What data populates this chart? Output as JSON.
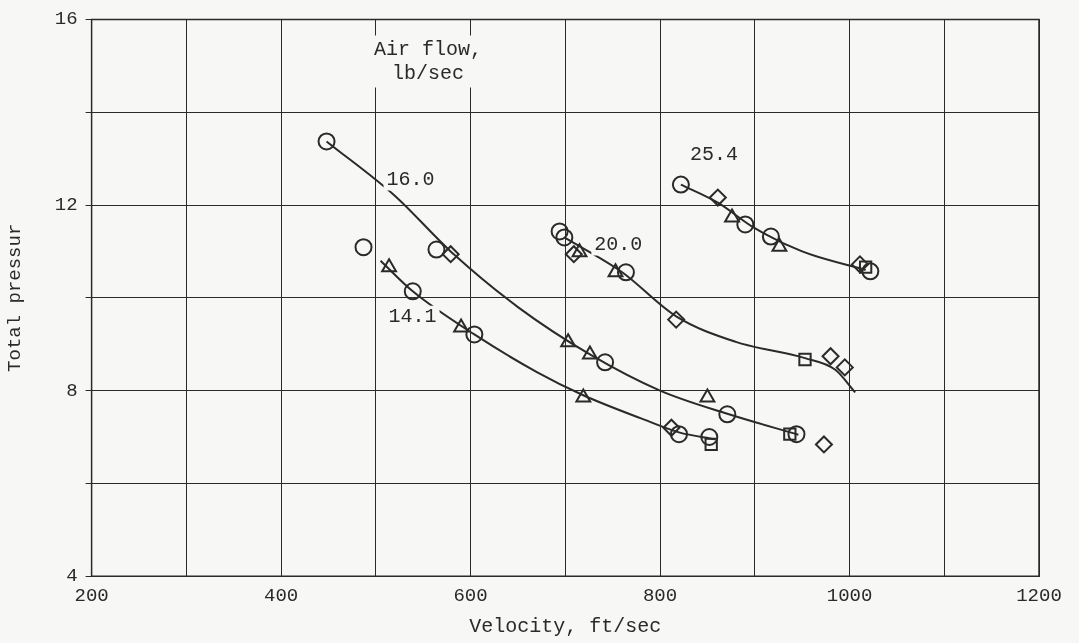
{
  "chart_data": {
    "type": "scatter",
    "xlabel": "Velocity, ft/sec",
    "ylabel": "Total pressur",
    "xlim": [
      200,
      1200
    ],
    "xticks": [
      200,
      {
        "value": 300,
        "label": null
      },
      400,
      {
        "value": 500,
        "label": null
      },
      600,
      {
        "value": 700,
        "label": null
      },
      800,
      {
        "value": 900,
        "label": null
      },
      1000,
      {
        "value": 1100,
        "label": null
      },
      1200
    ],
    "ylim": [
      4,
      16
    ],
    "yticks": [
      4,
      {
        "value": 6,
        "label": null
      },
      8,
      {
        "value": 10,
        "label": null
      },
      12,
      {
        "value": 14,
        "label": null
      },
      16
    ],
    "grid": true,
    "legend": false,
    "annotations": [
      "Air flow,\nlb/sec",
      "16.0",
      "14.1",
      "20.0",
      "25.4"
    ],
    "series": [
      {
        "type": "line",
        "marker": "none",
        "color": "#2a2a2a",
        "x": [
          448,
          520,
          579,
          650,
          726,
          800,
          871,
          946
        ],
        "values": [
          13.37,
          12.2,
          11.0,
          9.8,
          8.78,
          8.0,
          7.5,
          7.05
        ]
      },
      {
        "type": "line",
        "marker": "none",
        "color": "#2a2a2a",
        "x": [
          505,
          539,
          604,
          670,
          719,
          780,
          820,
          858
        ],
        "values": [
          10.8,
          10.14,
          9.21,
          8.4,
          7.9,
          7.4,
          7.1,
          6.95
        ]
      },
      {
        "type": "line",
        "marker": "none",
        "color": "#2a2a2a",
        "x": [
          699,
          760,
          817,
          880,
          953,
          985,
          1006
        ],
        "values": [
          11.3,
          10.55,
          9.6,
          9.05,
          8.7,
          8.45,
          7.96
        ]
      },
      {
        "type": "line",
        "marker": "none",
        "color": "#2a2a2a",
        "x": [
          822,
          861,
          900,
          950,
          1017
        ],
        "values": [
          12.44,
          12.05,
          11.5,
          11.0,
          10.6
        ]
      },
      {
        "type": "scatter",
        "marker": "circle",
        "color": "#2a2a2a",
        "x": [
          448,
          564,
          742,
          487,
          539,
          604,
          820,
          694,
          699,
          764,
          822,
          890,
          917,
          1022,
          871,
          944,
          852
        ],
        "values": [
          13.37,
          11.04,
          8.61,
          11.09,
          10.14,
          9.21,
          7.06,
          11.43,
          11.3,
          10.55,
          12.44,
          11.58,
          11.32,
          10.57,
          7.49,
          7.06,
          7.0
        ]
      },
      {
        "type": "scatter",
        "marker": "triangle",
        "color": "#2a2a2a",
        "x": [
          703,
          726,
          514,
          590,
          719,
          715,
          753,
          876,
          926,
          850
        ],
        "values": [
          9.04,
          8.78,
          10.66,
          9.36,
          7.85,
          10.98,
          10.55,
          11.73,
          11.1,
          7.85
        ]
      },
      {
        "type": "scatter",
        "marker": "diamond",
        "color": "#2a2a2a",
        "x": [
          579,
          812,
          709,
          817,
          861,
          1011,
          980,
          995,
          973
        ],
        "values": [
          10.94,
          7.2,
          10.94,
          9.53,
          12.16,
          10.72,
          8.74,
          8.5,
          6.84
        ]
      },
      {
        "type": "scatter",
        "marker": "square",
        "color": "#2a2a2a",
        "x": [
          953,
          937,
          854,
          1017
        ],
        "values": [
          8.67,
          7.06,
          6.84,
          10.66
        ]
      }
    ]
  }
}
